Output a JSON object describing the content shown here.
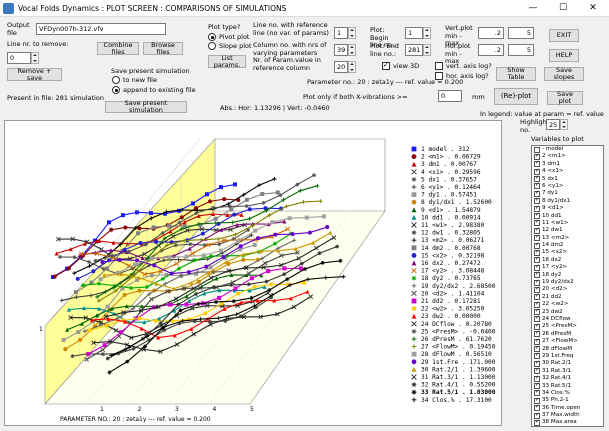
{
  "window": {
    "title": "Vocal Folds Dynamics : PLOT SCREEN : COMPARISONS OF SIMULATIONS",
    "minimize": "—",
    "maximize": "☐",
    "close": "✕"
  },
  "file": {
    "output_label": "Output file",
    "output_value": "VFDyn007h-312.vfv",
    "line_remove_label": "Line nr. to remove:",
    "line_remove_value": "0",
    "remove_save_button": "Remove + save",
    "present_label": "Present in file: 281 simulation",
    "combine_button": "Combine files",
    "browse_button": "Browse files",
    "save_sim_label": "Save present simulation",
    "to_new_file": "to new file",
    "append_existing": "append to existing file",
    "save_sim_button": "Save present simulation"
  },
  "plot_type": {
    "label": "Plot type?",
    "pivot": "Pivot plot",
    "slope": "Slope plot",
    "list_params_button": "List params."
  },
  "params": {
    "line_ref_label": "Line no. with reference line (no var. of params)",
    "line_ref_value": "1",
    "column_label": "Column no. with nrs of varying parameters",
    "column_value": "39",
    "param_ref_label": "Nr. of Param.value in reference column",
    "param_ref_value": "20",
    "plot_begin_label": "Plot: Begin line no.:",
    "plot_begin_value": "1",
    "plot_end_label": "Plot: End line no.:",
    "plot_end_value": "281",
    "view3d_label": "view 3D",
    "param_info": "Parameter no.: 20 : zeta1y    --- ref. value =   0.200",
    "plot_only_label": "Plot only if both X-vibrations >=",
    "plot_only_value": "0",
    "plot_only_unit": "mm",
    "abs_label": "Abs.: Hor:   1.13296 | Vert:   -0.0460"
  },
  "axes_settings": {
    "vert_label": "Vert.plot min - max",
    "vert_min": ".2",
    "vert_max": "5",
    "hor_label": "Hor.plot min - max",
    "hor_min": ".2",
    "hor_max": "5",
    "vert_log": "vert. axis log?",
    "hor_log": "hor. axis log?",
    "show_table_button": "Show Table",
    "replot_button": "(Re)-plot"
  },
  "right": {
    "exit_button": "EXIT",
    "help_button": "HELP",
    "save_slopes_button": "Save slopes",
    "save_plot_button": "Save plot",
    "legend_note": "In legend: value at param = ref. value",
    "highlight_label": "Highlight no.",
    "highlight_value": "25",
    "vars_label": "Variables to plot"
  },
  "plot": {
    "footer": "PARAMETER NO.: 20 :   zeta1y     --- ref. value =   0.200",
    "axis_ticks": [
      "1",
      "2",
      "3",
      "4",
      "5"
    ],
    "yaxis_tick": "1"
  },
  "legend": [
    {
      "n": "1",
      "name": "model",
      "val": "312",
      "color": "#1a1aff",
      "mark": "sq"
    },
    {
      "n": "2",
      "name": "<m1>",
      "val": "0.06729",
      "color": "#8b0000",
      "mark": "ci"
    },
    {
      "n": "3",
      "name": "dm1",
      "val": "0.00767",
      "color": "#cc0000",
      "mark": "tri"
    },
    {
      "n": "4",
      "name": "<x1>",
      "val": "0.29596",
      "color": "#333333",
      "mark": "x"
    },
    {
      "n": "5",
      "name": "dx1",
      "val": "0.37657",
      "color": "#555555",
      "mark": "star"
    },
    {
      "n": "6",
      "name": "<y1>",
      "val": "0.12464",
      "color": "#3a3a3a",
      "mark": "plus"
    },
    {
      "n": "7",
      "name": "dy1",
      "val": "0.57451",
      "color": "#999999",
      "mark": "sq"
    },
    {
      "n": "8",
      "name": "dy1/dx1",
      "val": "1.52600",
      "color": "#cc8800",
      "mark": "ci"
    },
    {
      "n": "9",
      "name": "<d1>",
      "val": "1.54879",
      "color": "#006400",
      "mark": "tri"
    },
    {
      "n": "10",
      "name": "dd1",
      "val": "0.00914",
      "color": "#008b8b",
      "mark": "tri"
    },
    {
      "n": "11",
      "name": "<w1>",
      "val": "2.98380",
      "color": "#222222",
      "mark": "x"
    },
    {
      "n": "12",
      "name": "dw1",
      "val": "0.32805",
      "color": "#444444",
      "mark": "star"
    },
    {
      "n": "13",
      "name": "<m2>",
      "val": "0.06271",
      "color": "#000000",
      "mark": "plus"
    },
    {
      "n": "14",
      "name": "dm2",
      "val": "0.00768",
      "color": "#808080",
      "mark": "sq"
    },
    {
      "n": "15",
      "name": "<x2>",
      "val": "0.32198",
      "color": "#2222cc",
      "mark": "ci"
    },
    {
      "n": "16",
      "name": "dx2",
      "val": "0.27472",
      "color": "#800080",
      "mark": "tri"
    },
    {
      "n": "17",
      "name": "<y2>",
      "val": "3.08448",
      "color": "#cc6600",
      "mark": "x"
    },
    {
      "n": "18",
      "name": "dy2",
      "val": "0.73765",
      "color": "#00aa00",
      "mark": "star"
    },
    {
      "n": "19",
      "name": "dy2/dx2",
      "val": "2.68500",
      "color": "#666666",
      "mark": "plus"
    },
    {
      "n": "20",
      "name": "<d2>",
      "val": "1.41104",
      "color": "#444444",
      "mark": "x"
    },
    {
      "n": "21",
      "name": "dd2",
      "val": "0.17281",
      "color": "#cc00cc",
      "mark": "sq"
    },
    {
      "n": "22",
      "name": "<w2>",
      "val": "3.05250",
      "color": "#ffcc00",
      "mark": "ci"
    },
    {
      "n": "23",
      "name": "dw2",
      "val": "0.00000",
      "color": "#ff0000",
      "mark": "tri"
    },
    {
      "n": "24",
      "name": "DCflow",
      "val": "0.20780",
      "color": "#222222",
      "mark": "x"
    },
    {
      "n": "25",
      "name": "<PresM>",
      "val": "-0.0400",
      "color": "#555555",
      "mark": "star"
    },
    {
      "n": "26",
      "name": "dPresM",
      "val": "61.7620",
      "color": "#006400",
      "mark": "plus"
    },
    {
      "n": "27",
      "name": "<FlowM>",
      "val": "0.19450",
      "color": "#808000",
      "mark": "plus"
    },
    {
      "n": "28",
      "name": "dFlowM",
      "val": "0.56510",
      "color": "#a0a0a0",
      "mark": "sq"
    },
    {
      "n": "29",
      "name": "1st.Fre",
      "val": "171.000",
      "color": "#6600cc",
      "mark": "ci"
    },
    {
      "n": "30",
      "name": "Rat.2/1",
      "val": "1.39600",
      "color": "#cc9900",
      "mark": "tri"
    },
    {
      "n": "31",
      "name": "Rat.3/1",
      "val": "1.13000",
      "color": "#222222",
      "mark": "x"
    },
    {
      "n": "32",
      "name": "Rat.4/1",
      "val": "0.55200",
      "color": "#333333",
      "mark": "star"
    },
    {
      "n": "33",
      "name": "Rat.5/1",
      "val": "1.03000",
      "color": "#000000",
      "mark": "star",
      "bold": true
    },
    {
      "n": "34",
      "name": "Clos.%",
      "val": "17.3100",
      "color": "#000000",
      "mark": "plus"
    }
  ],
  "variables": [
    {
      "label": "- model",
      "on": false
    },
    {
      "label": "2 <m1>",
      "on": true
    },
    {
      "label": "3 dm1",
      "on": true
    },
    {
      "label": "4 <x1>",
      "on": true
    },
    {
      "label": "5 dx1",
      "on": true
    },
    {
      "label": "6 <y1>",
      "on": true
    },
    {
      "label": "7 dy1",
      "on": true
    },
    {
      "label": "8 dy1/dx1",
      "on": true
    },
    {
      "label": "9 <d1>",
      "on": true
    },
    {
      "label": "10 dd1",
      "on": true
    },
    {
      "label": "11 <w1>",
      "on": true
    },
    {
      "label": "12 dw1",
      "on": true
    },
    {
      "label": "13 <m2>",
      "on": true
    },
    {
      "label": "14 dm2",
      "on": true
    },
    {
      "label": "15 <x2>",
      "on": true
    },
    {
      "label": "16 dx2",
      "on": true
    },
    {
      "label": "17 <y2>",
      "on": true
    },
    {
      "label": "18 dy2",
      "on": true
    },
    {
      "label": "19 dy2/dx2",
      "on": true
    },
    {
      "label": "20 <d2>",
      "on": true
    },
    {
      "label": "21 dd2",
      "on": true
    },
    {
      "label": "22 <w2>",
      "on": true
    },
    {
      "label": "23 dw2",
      "on": true
    },
    {
      "label": "24 DCflow",
      "on": true
    },
    {
      "label": "25 <PresM>",
      "on": true
    },
    {
      "label": "26 dPresM",
      "on": true
    },
    {
      "label": "27 <FlowM>",
      "on": true
    },
    {
      "label": "28 dFlowM",
      "on": true
    },
    {
      "label": "29 1st.Freq",
      "on": true
    },
    {
      "label": "30 Rat.2/1",
      "on": true
    },
    {
      "label": "31 Rat.3/1",
      "on": true
    },
    {
      "label": "32 Rat.4/1",
      "on": true
    },
    {
      "label": "33 Rat.5/1",
      "on": true
    },
    {
      "label": "34 Clos.%",
      "on": true
    },
    {
      "label": "35 Ph.2-1",
      "on": true
    },
    {
      "label": "36 Time.open",
      "on": true
    },
    {
      "label": "37 Max.width",
      "on": true
    },
    {
      "label": "38 Max.area",
      "on": true
    }
  ]
}
